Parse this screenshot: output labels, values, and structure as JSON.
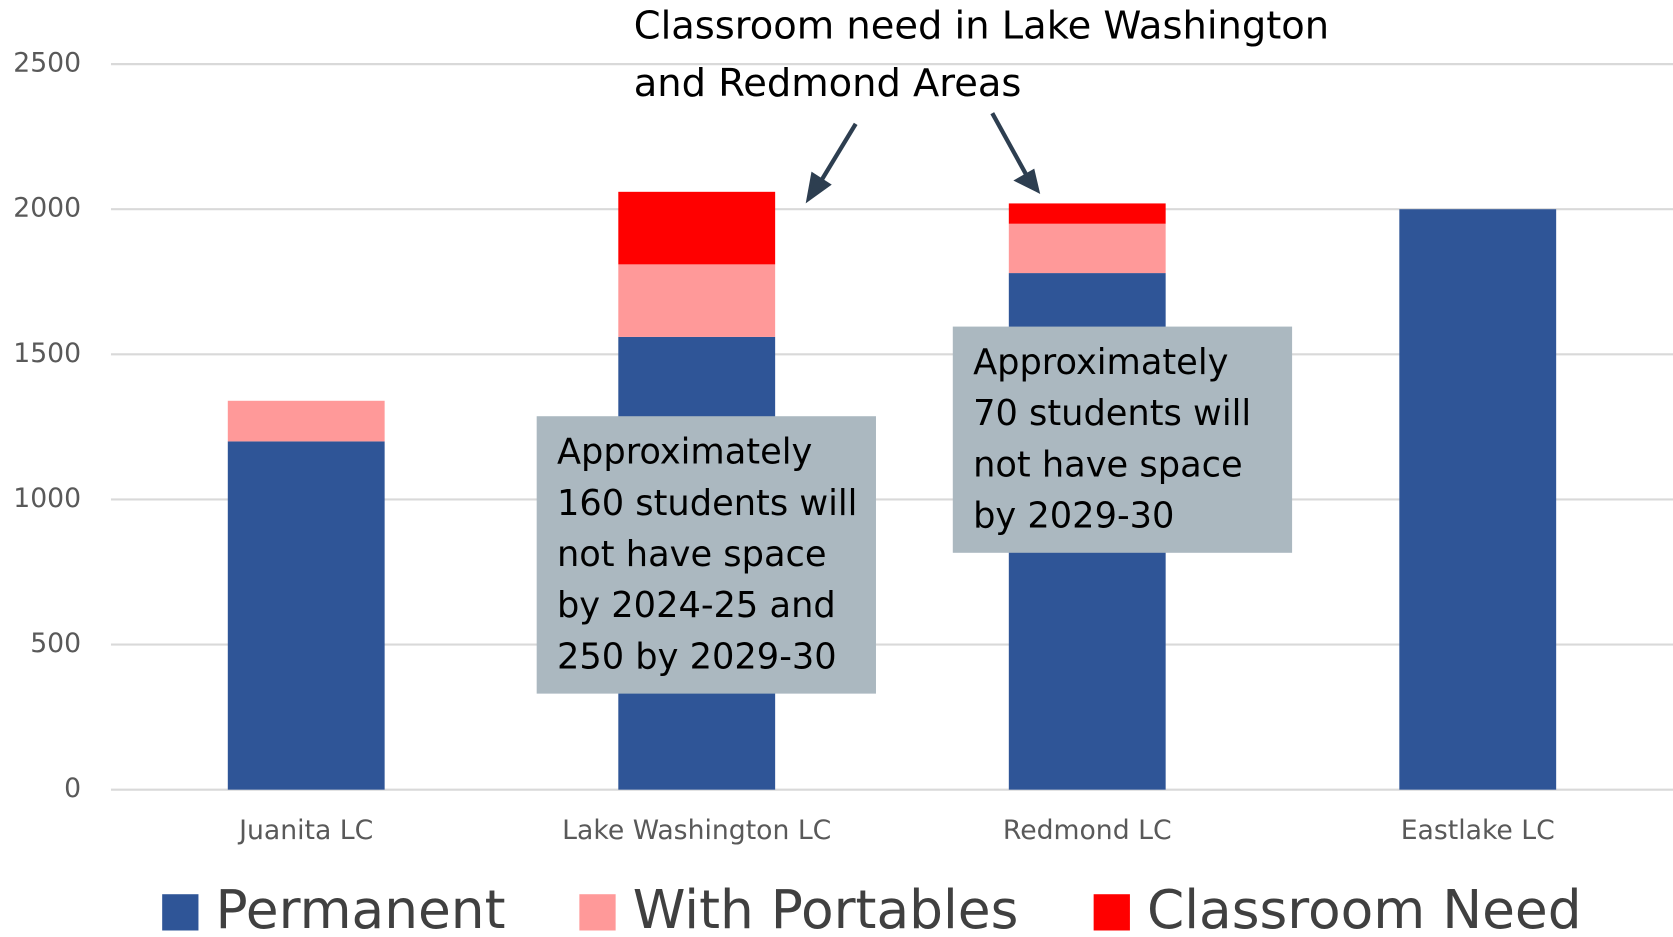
{
  "chart_data": {
    "type": "stacked_bar",
    "title": [
      "Classroom need in Lake Washington",
      "and Redmond Areas"
    ],
    "categories": [
      "Juanita LC",
      "Lake Washington LC",
      "Redmond LC",
      "Eastlake LC"
    ],
    "series": [
      {
        "name": "Permanent",
        "color": "#2f5597",
        "values": [
          1200,
          1560,
          1780,
          2000
        ]
      },
      {
        "name": "With Portables",
        "color": "#ff9999",
        "values": [
          140,
          250,
          170,
          null
        ]
      },
      {
        "name": "Classroom Need",
        "color": "#ff0000",
        "values": [
          null,
          250,
          70,
          null
        ]
      }
    ],
    "ylim": [
      0,
      2500
    ],
    "yticks": [
      0,
      500,
      1000,
      1500,
      2000,
      2500
    ],
    "grid": true,
    "legend": "bottom",
    "annotations": [
      [
        "Approximately",
        "160 students will",
        "not have space",
        "by 2024-25 and",
        "250 by 2029-30"
      ],
      [
        "Approximately",
        "70 students will",
        "not have space",
        "by 2029-30"
      ]
    ]
  }
}
